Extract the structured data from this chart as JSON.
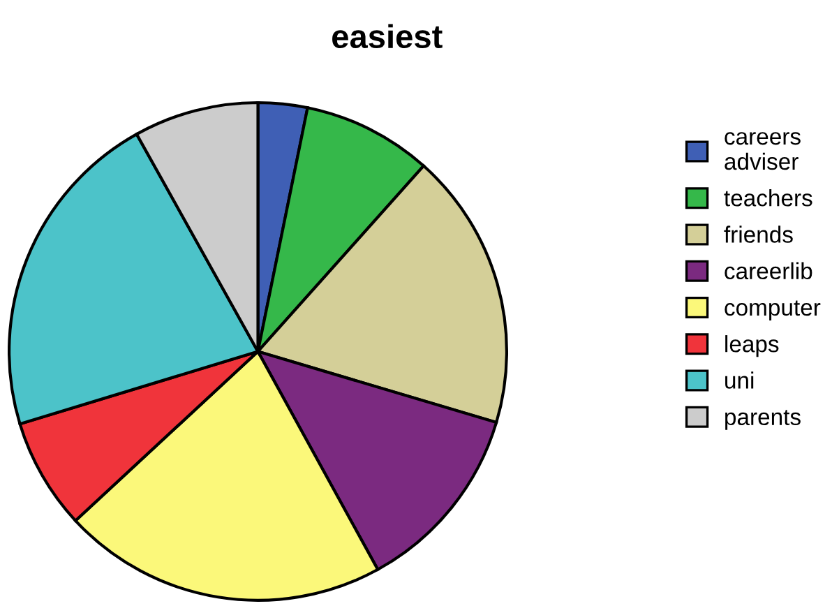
{
  "chart_data": {
    "type": "pie",
    "title": "easiest",
    "categories": [
      "careers\nadviser",
      "teachers",
      "friends",
      "careerlib",
      "computer",
      "leaps",
      "uni",
      "parents"
    ],
    "values": [
      3.2,
      8.4,
      18.0,
      12.4,
      21.1,
      7.2,
      21.6,
      8.1
    ],
    "colors": [
      "#3f5fb5",
      "#35b84a",
      "#d4cf98",
      "#7b2a80",
      "#fbf87a",
      "#f0343b",
      "#4cc3c9",
      "#cccccc"
    ],
    "legend": "right"
  }
}
